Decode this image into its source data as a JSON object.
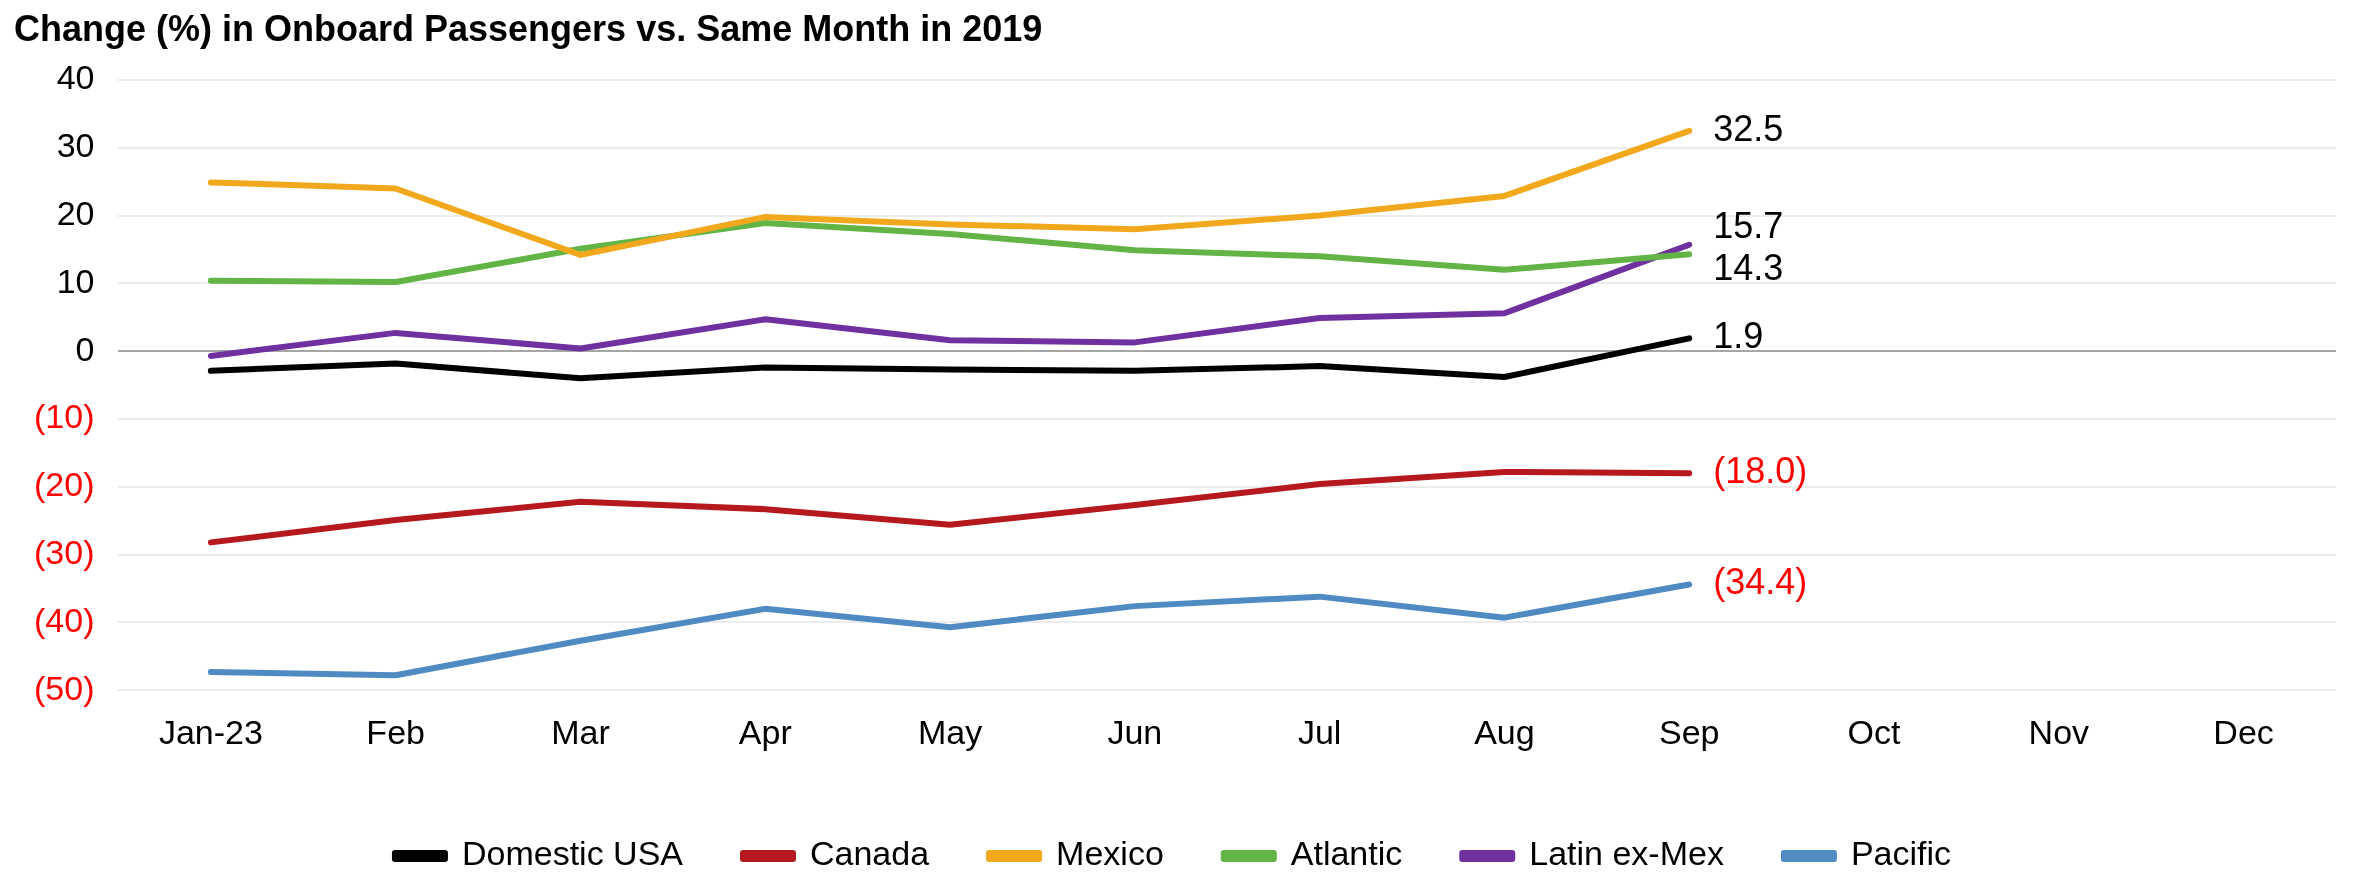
{
  "chart_data": {
    "type": "line",
    "title": "Change (%) in Onboard Passengers vs. Same Month in 2019",
    "categories": [
      "Jan-23",
      "Feb",
      "Mar",
      "Apr",
      "May",
      "Jun",
      "Jul",
      "Aug",
      "Sep",
      "Oct",
      "Nov",
      "Dec"
    ],
    "series": [
      {
        "name": "Domestic USA",
        "color": "#000000",
        "values": [
          -2.9,
          -1.8,
          -4.0,
          -2.4,
          -2.7,
          -2.9,
          -2.2,
          -3.8,
          1.9,
          null,
          null,
          null
        ],
        "value_labels": [
          null,
          null,
          null,
          null,
          null,
          null,
          null,
          null,
          "1.9",
          null,
          null,
          null
        ]
      },
      {
        "name": "Canada",
        "color": "#b5191e",
        "values": [
          -28.2,
          -24.9,
          -22.2,
          -23.3,
          -25.6,
          -22.7,
          -19.6,
          -17.8,
          -18.0,
          null,
          null,
          null
        ],
        "value_labels": [
          null,
          null,
          null,
          null,
          null,
          null,
          null,
          null,
          "(18.0)",
          null,
          null,
          null
        ]
      },
      {
        "name": "Mexico",
        "color": "#f2a81d",
        "values": [
          24.9,
          24.0,
          14.2,
          19.8,
          18.7,
          18.0,
          20.0,
          22.9,
          32.5,
          null,
          null,
          null
        ],
        "value_labels": [
          null,
          null,
          null,
          null,
          null,
          null,
          null,
          null,
          "32.5",
          null,
          null,
          null
        ]
      },
      {
        "name": "Atlantic",
        "color": "#62b446",
        "values": [
          10.4,
          10.2,
          15.1,
          18.9,
          17.3,
          14.9,
          14.0,
          12.0,
          14.3,
          null,
          null,
          null
        ],
        "value_labels": [
          null,
          null,
          null,
          null,
          null,
          null,
          null,
          null,
          "14.3",
          null,
          null,
          null
        ]
      },
      {
        "name": "Latin ex-Mex",
        "color": "#7030a0",
        "values": [
          -0.7,
          2.7,
          0.4,
          4.7,
          1.6,
          1.3,
          4.9,
          5.6,
          15.7,
          null,
          null,
          null
        ],
        "value_labels": [
          null,
          null,
          null,
          null,
          null,
          null,
          null,
          null,
          "15.7",
          null,
          null,
          null
        ]
      },
      {
        "name": "Pacific",
        "color": "#4f8ac3",
        "values": [
          -47.3,
          -47.8,
          -42.7,
          -38.0,
          -40.7,
          -37.6,
          -36.2,
          -39.3,
          -34.4,
          null,
          null,
          null
        ],
        "value_labels": [
          null,
          null,
          null,
          null,
          null,
          null,
          null,
          null,
          "(34.4)",
          null,
          null,
          null
        ]
      }
    ],
    "ylim": [
      -50,
      40
    ],
    "yticks": [
      {
        "value": -50,
        "label": "(50)"
      },
      {
        "value": -40,
        "label": "(40)"
      },
      {
        "value": -30,
        "label": "(30)"
      },
      {
        "value": -20,
        "label": "(20)"
      },
      {
        "value": -10,
        "label": "(10)"
      },
      0,
      10,
      20,
      30,
      40
    ],
    "grid": "y",
    "legend": "bottom",
    "marker": "none",
    "line_style": "solid"
  }
}
